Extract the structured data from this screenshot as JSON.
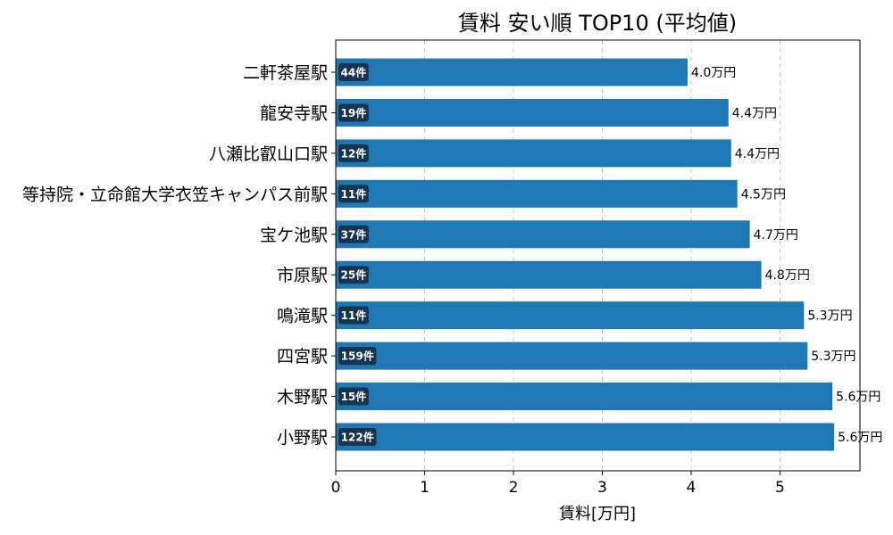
{
  "chart_data": {
    "type": "bar",
    "orientation": "horizontal",
    "title": "賃料 安い順 TOP10 (平均値)",
    "xlabel": "賃料[万円]",
    "ylabel": "",
    "xlim": [
      0,
      5.9
    ],
    "xticks": [
      "0",
      "1",
      "2",
      "3",
      "4",
      "5"
    ],
    "grid": "vertical dashed",
    "bar_color": "#1f77b4",
    "badge_color": "#17344f",
    "categories": [
      "二軒茶屋駅",
      "龍安寺駅",
      "八瀬比叡山口駅",
      "等持院・立命館大学衣笠キャンパス前駅",
      "宝ケ池駅",
      "市原駅",
      "鳴滝駅",
      "四宮駅",
      "木野駅",
      "小野駅"
    ],
    "values": [
      3.96,
      4.42,
      4.45,
      4.52,
      4.66,
      4.79,
      5.27,
      5.31,
      5.59,
      5.61
    ],
    "value_labels": [
      "4.0万円",
      "4.4万円",
      "4.4万円",
      "4.5万円",
      "4.7万円",
      "4.8万円",
      "5.3万円",
      "5.3万円",
      "5.6万円",
      "5.6万円"
    ],
    "count_labels": [
      "44件",
      "19件",
      "12件",
      "11件",
      "37件",
      "25件",
      "11件",
      "159件",
      "15件",
      "122件"
    ]
  }
}
